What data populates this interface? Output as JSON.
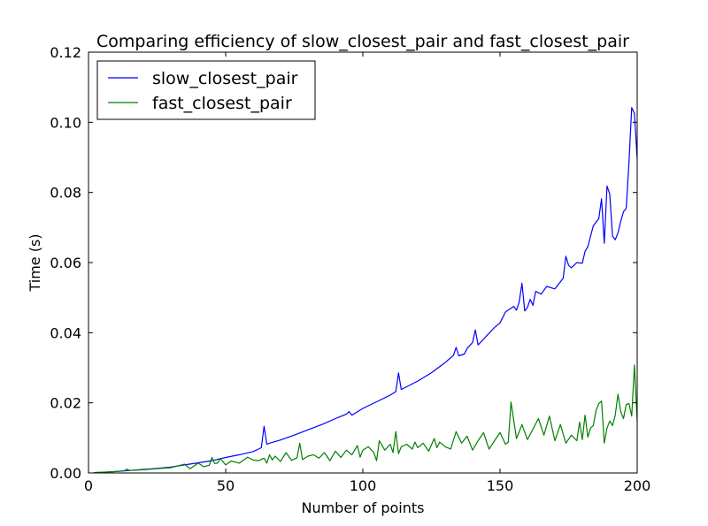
{
  "chart_data": {
    "type": "line",
    "title": "Comparing efficiency of slow_closest_pair and fast_closest_pair",
    "xlabel": "Number of points",
    "ylabel": "Time (s)",
    "xlim": [
      0,
      200
    ],
    "ylim": [
      0,
      0.12
    ],
    "xticks": [
      0,
      50,
      100,
      150,
      200
    ],
    "xtick_labels": [
      "0",
      "50",
      "100",
      "150",
      "200"
    ],
    "yticks": [
      0,
      0.02,
      0.04,
      0.06,
      0.08,
      0.1,
      0.12
    ],
    "ytick_labels": [
      "0.00",
      "0.02",
      "0.04",
      "0.06",
      "0.08",
      "0.10",
      "0.12"
    ],
    "grid": false,
    "legend_position": "top-left",
    "series": [
      {
        "name": "slow_closest_pair",
        "color": "#0000ff",
        "x": [
          2,
          5,
          10,
          15,
          20,
          25,
          30,
          35,
          40,
          45,
          50,
          55,
          60,
          62,
          63,
          64,
          65,
          66,
          70,
          75,
          80,
          85,
          90,
          94,
          95,
          96,
          100,
          105,
          110,
          112,
          113,
          114,
          115,
          120,
          125,
          130,
          133,
          134,
          135,
          137,
          138,
          140,
          141,
          142,
          145,
          148,
          150,
          152,
          154,
          155,
          156,
          157,
          158,
          159,
          160,
          161,
          162,
          163,
          165,
          167,
          170,
          173,
          174,
          175,
          176,
          178,
          180,
          181,
          182,
          184,
          185,
          186,
          187,
          188,
          189,
          190,
          191,
          192,
          193,
          194,
          195,
          196,
          197,
          198,
          199,
          200
        ],
        "y": [
          0.0001,
          0.0002,
          0.0004,
          0.0007,
          0.001,
          0.0013,
          0.0017,
          0.0023,
          0.0029,
          0.0035,
          0.0044,
          0.0052,
          0.0061,
          0.0068,
          0.0072,
          0.0133,
          0.0082,
          0.0085,
          0.0094,
          0.0108,
          0.0123,
          0.0138,
          0.0155,
          0.0168,
          0.0175,
          0.0165,
          0.0184,
          0.0203,
          0.0222,
          0.0232,
          0.0285,
          0.0238,
          0.0242,
          0.0262,
          0.0286,
          0.0315,
          0.0335,
          0.0358,
          0.0334,
          0.0339,
          0.0355,
          0.0372,
          0.0408,
          0.0365,
          0.039,
          0.0415,
          0.0428,
          0.0459,
          0.047,
          0.0475,
          0.0464,
          0.0488,
          0.0541,
          0.0462,
          0.0472,
          0.0495,
          0.0478,
          0.0518,
          0.051,
          0.0532,
          0.0525,
          0.0555,
          0.0618,
          0.0592,
          0.0585,
          0.06,
          0.0598,
          0.0632,
          0.0645,
          0.0705,
          0.0715,
          0.0725,
          0.0782,
          0.0655,
          0.0818,
          0.0795,
          0.0675,
          0.0665,
          0.0685,
          0.0718,
          0.0745,
          0.0755,
          0.0885,
          0.1042,
          0.1025,
          0.0895
        ]
      },
      {
        "name": "fast_closest_pair",
        "color": "#008000",
        "x": [
          2,
          5,
          10,
          13,
          14,
          15,
          20,
          25,
          30,
          35,
          37,
          40,
          42,
          44,
          45,
          46,
          47,
          48,
          50,
          52,
          55,
          58,
          60,
          62,
          64,
          65,
          66,
          67,
          68,
          70,
          72,
          74,
          76,
          77,
          78,
          80,
          82,
          84,
          86,
          88,
          90,
          92,
          94,
          96,
          98,
          99,
          100,
          102,
          104,
          105,
          106,
          108,
          110,
          111,
          112,
          113,
          114,
          116,
          118,
          119,
          120,
          122,
          124,
          126,
          127,
          128,
          130,
          132,
          134,
          136,
          138,
          140,
          142,
          144,
          146,
          148,
          150,
          152,
          153,
          154,
          156,
          158,
          160,
          162,
          164,
          166,
          168,
          170,
          172,
          174,
          176,
          178,
          179,
          180,
          181,
          182,
          183,
          184,
          185,
          186,
          187,
          188,
          189,
          190,
          191,
          192,
          193,
          194,
          195,
          196,
          197,
          198,
          199,
          200
        ],
        "y": [
          0.0001,
          0.0002,
          0.0004,
          0.0006,
          0.0011,
          0.0007,
          0.0009,
          0.0012,
          0.0015,
          0.0025,
          0.0012,
          0.0028,
          0.0018,
          0.0022,
          0.0044,
          0.0027,
          0.0028,
          0.0041,
          0.0023,
          0.0034,
          0.0028,
          0.0045,
          0.0037,
          0.0035,
          0.0042,
          0.0028,
          0.0052,
          0.0037,
          0.0048,
          0.0033,
          0.0058,
          0.0036,
          0.0043,
          0.0085,
          0.0038,
          0.0048,
          0.0052,
          0.0042,
          0.0058,
          0.0035,
          0.0062,
          0.0044,
          0.0065,
          0.0052,
          0.0078,
          0.0045,
          0.0065,
          0.0075,
          0.0058,
          0.0035,
          0.0092,
          0.0065,
          0.0082,
          0.0058,
          0.0118,
          0.0055,
          0.0075,
          0.0082,
          0.0068,
          0.0088,
          0.0072,
          0.0085,
          0.0062,
          0.0098,
          0.0072,
          0.0088,
          0.0075,
          0.0068,
          0.0118,
          0.0085,
          0.0105,
          0.0065,
          0.0092,
          0.0115,
          0.0068,
          0.0092,
          0.0115,
          0.0082,
          0.0088,
          0.0202,
          0.0098,
          0.0138,
          0.0095,
          0.0125,
          0.0155,
          0.0108,
          0.0162,
          0.0092,
          0.0138,
          0.0085,
          0.0108,
          0.0092,
          0.0145,
          0.0095,
          0.0165,
          0.0102,
          0.0128,
          0.0135,
          0.0178,
          0.0198,
          0.0205,
          0.0085,
          0.0128,
          0.0148,
          0.0135,
          0.0165,
          0.0225,
          0.0175,
          0.0155,
          0.0195,
          0.0198,
          0.0162,
          0.0308,
          0.0145
        ]
      }
    ]
  }
}
